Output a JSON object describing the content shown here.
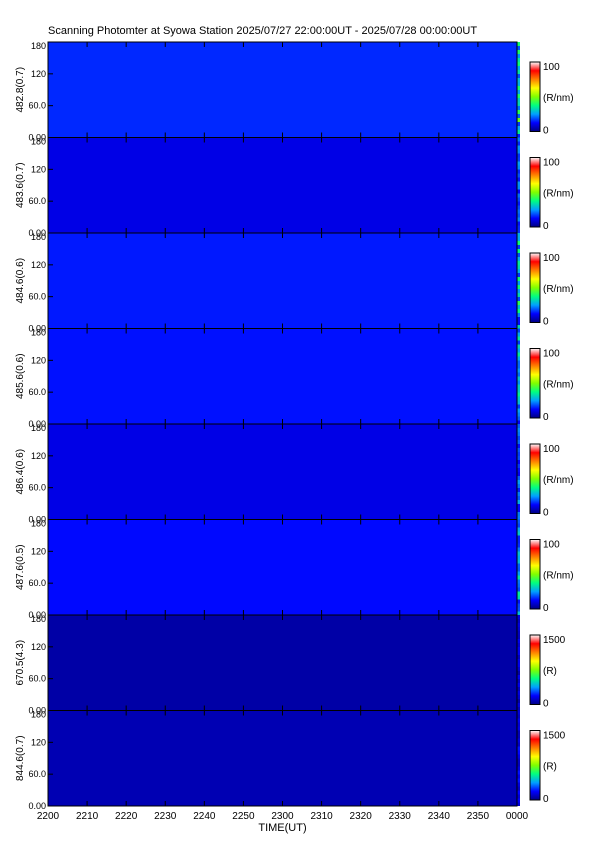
{
  "title": "Scanning Photomter at Syowa Station  2025/07/27 22:00:00UT - 2025/07/28 00:00:00UT",
  "chart_data": {
    "type": "heatmap",
    "title": "Scanning Photomter at Syowa Station  2025/07/27 22:00:00UT - 2025/07/28 00:00:00UT",
    "xlabel": "TIME(UT)",
    "x_ticks": [
      "2200",
      "2210",
      "2220",
      "2230",
      "2240",
      "2250",
      "2300",
      "2310",
      "2320",
      "2330",
      "2340",
      "2350",
      "0000"
    ],
    "y_ticks": [
      "0.00",
      "60.0",
      "120",
      "180"
    ],
    "ylim": [
      0,
      180
    ],
    "colormap": [
      "#000080",
      "#0000ff",
      "#00a0ff",
      "#00ff80",
      "#80ff00",
      "#ffff00",
      "#ff8000",
      "#ff0000",
      "#ffffff"
    ],
    "panels": [
      {
        "ylabel": "482.8(0.7)",
        "cb_max": "100",
        "cb_min": "0",
        "cb_unit": "(R/nm)",
        "level": 0.4
      },
      {
        "ylabel": "483.6(0.7)",
        "cb_max": "100",
        "cb_min": "0",
        "cb_unit": "(R/nm)",
        "level": 0.24
      },
      {
        "ylabel": "484.6(0.6)",
        "cb_max": "100",
        "cb_min": "0",
        "cb_unit": "(R/nm)",
        "level": 0.36
      },
      {
        "ylabel": "485.6(0.6)",
        "cb_max": "100",
        "cb_min": "0",
        "cb_unit": "(R/nm)",
        "level": 0.34
      },
      {
        "ylabel": "486.4(0.6)",
        "cb_max": "100",
        "cb_min": "0",
        "cb_unit": "(R/nm)",
        "level": 0.24
      },
      {
        "ylabel": "487.6(0.5)",
        "cb_max": "100",
        "cb_min": "0",
        "cb_unit": "(R/nm)",
        "level": 0.32
      },
      {
        "ylabel": "670.5(4.3)",
        "cb_max": "1500",
        "cb_min": "0",
        "cb_unit": "(R)",
        "level": 0.09
      },
      {
        "ylabel": "844.6(0.7)",
        "cb_max": "1500",
        "cb_min": "0",
        "cb_unit": "(R)",
        "level": 0.12
      }
    ]
  }
}
